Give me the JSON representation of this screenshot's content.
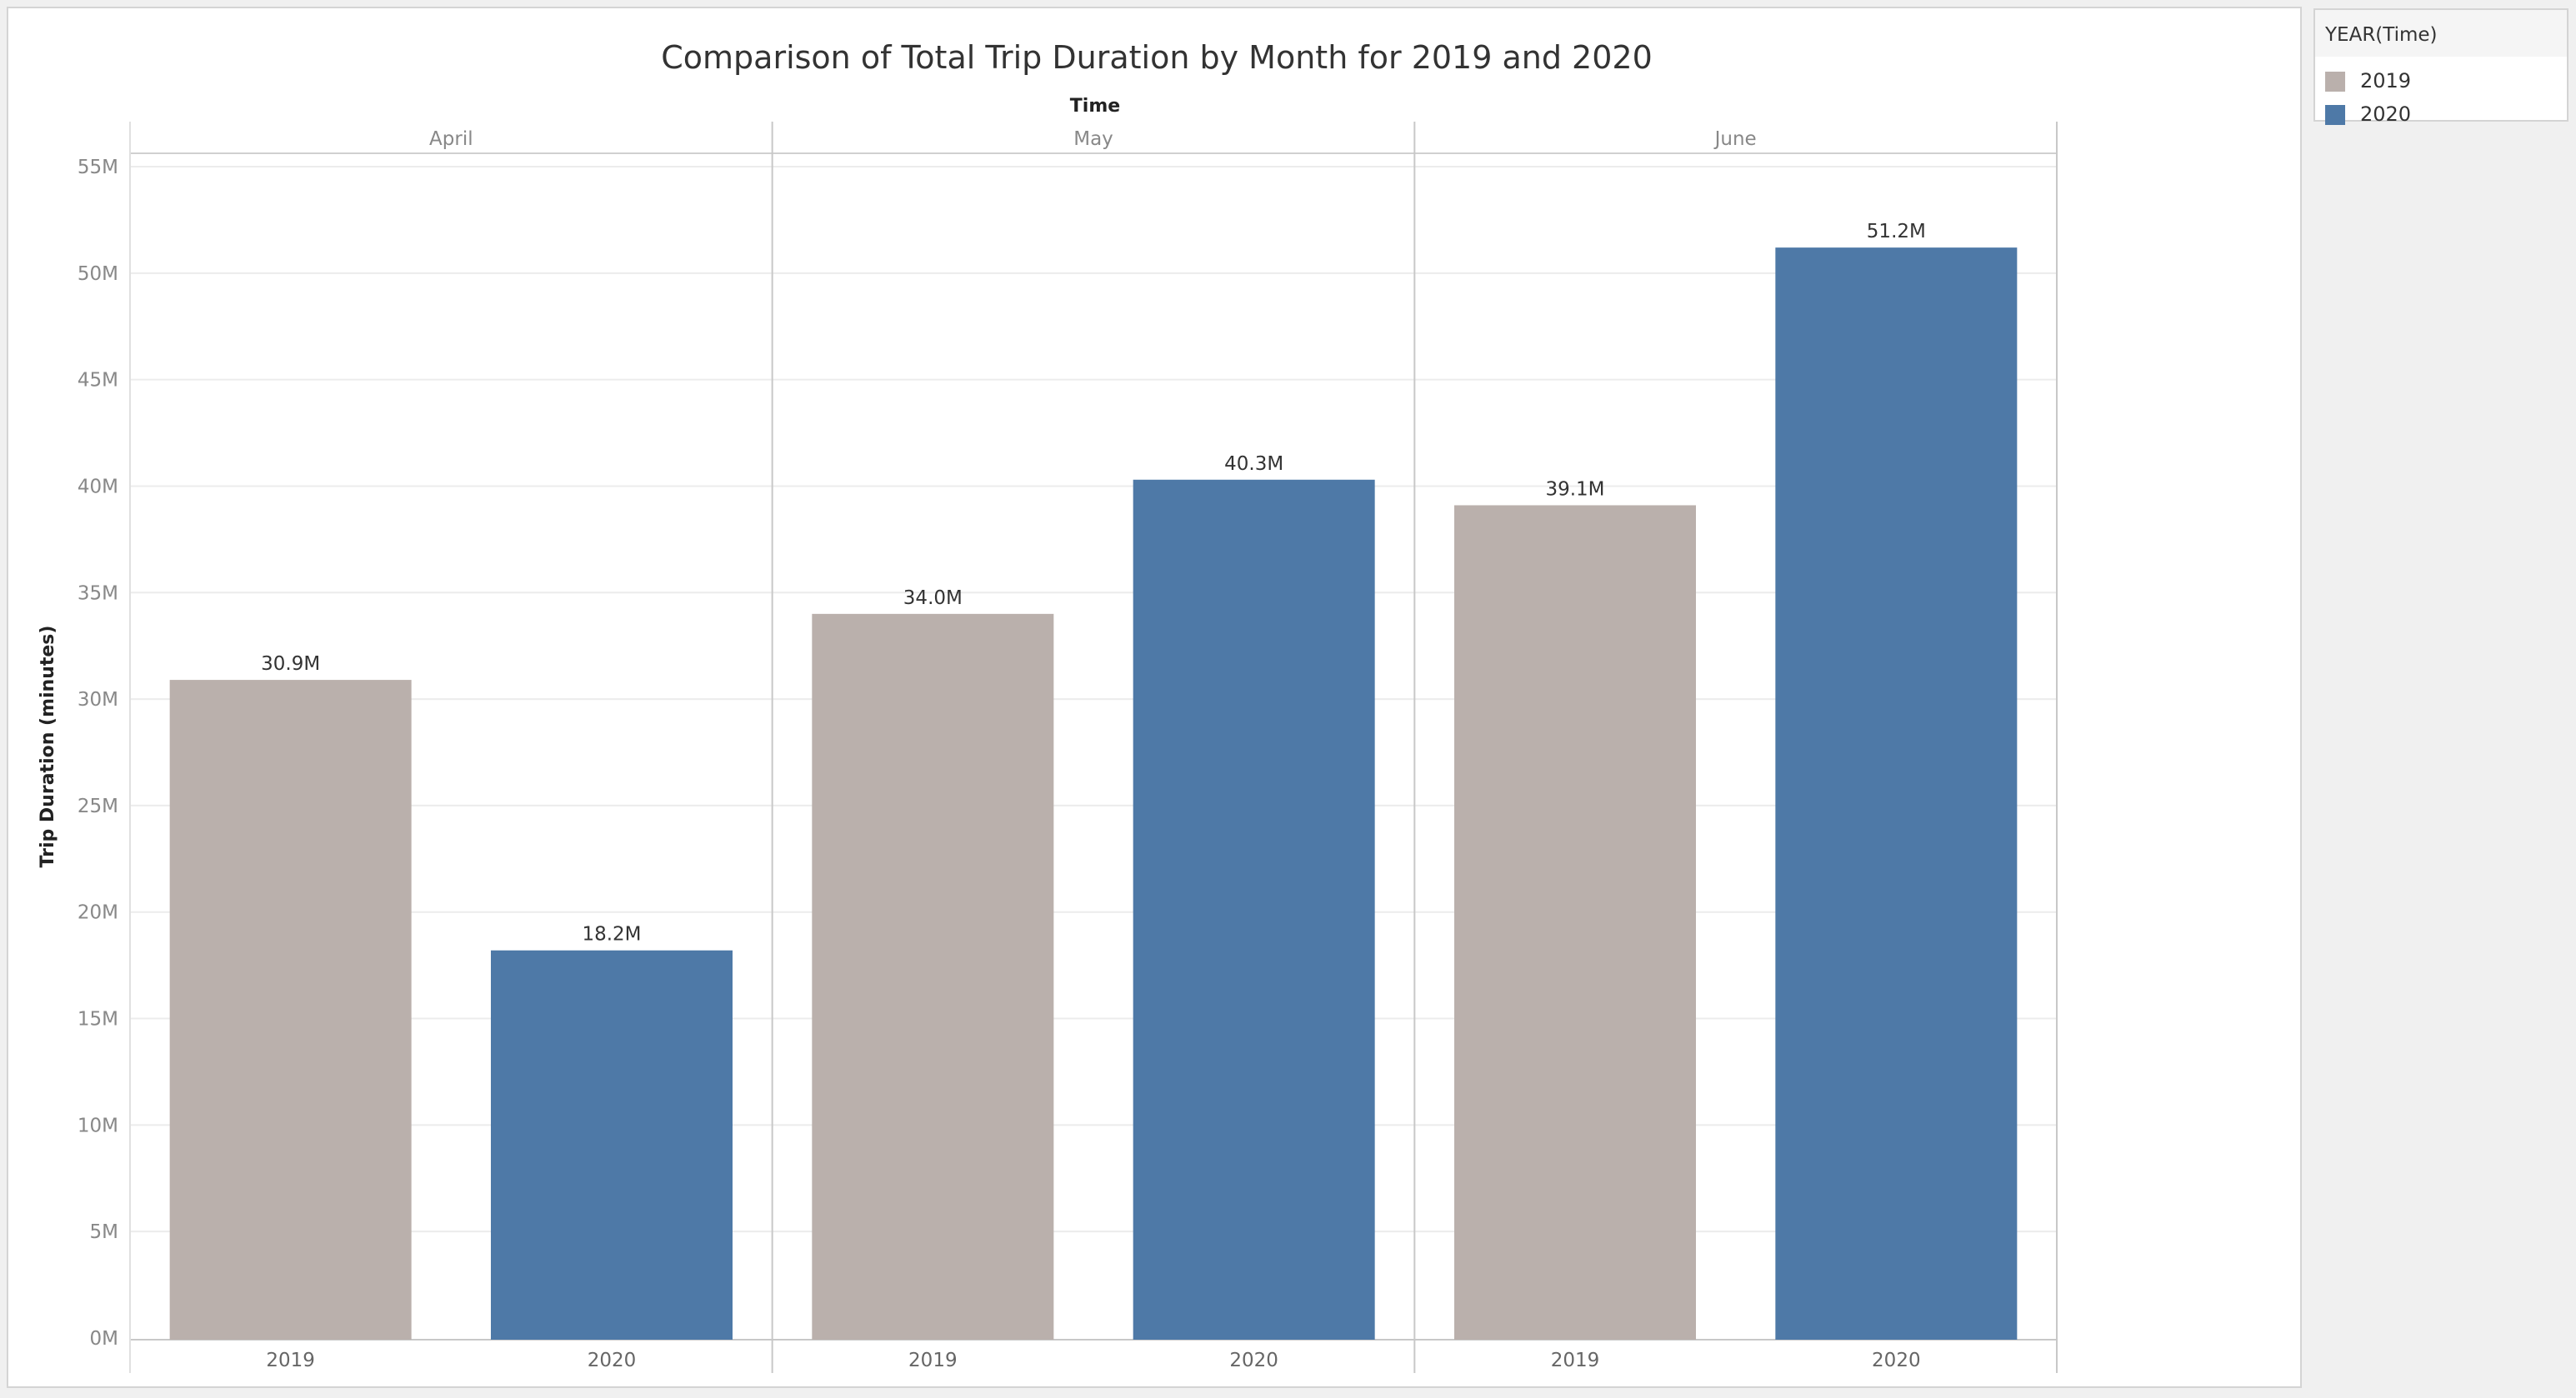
{
  "chart_data": {
    "type": "bar",
    "title": "Comparison of Total Trip Duration by Month for 2019 and 2020",
    "column_header_title": "Time",
    "ylabel": "Trip Duration (minutes)",
    "ylim": [
      0,
      55000000
    ],
    "yticks": [
      {
        "value": 0,
        "label": "0M"
      },
      {
        "value": 5000000,
        "label": "5M"
      },
      {
        "value": 10000000,
        "label": "10M"
      },
      {
        "value": 15000000,
        "label": "15M"
      },
      {
        "value": 20000000,
        "label": "20M"
      },
      {
        "value": 25000000,
        "label": "25M"
      },
      {
        "value": 30000000,
        "label": "30M"
      },
      {
        "value": 35000000,
        "label": "35M"
      },
      {
        "value": 40000000,
        "label": "40M"
      },
      {
        "value": 45000000,
        "label": "45M"
      },
      {
        "value": 50000000,
        "label": "50M"
      },
      {
        "value": 55000000,
        "label": "55M"
      }
    ],
    "grid": true,
    "legend_placement": "top-right",
    "groups": [
      {
        "name": "April",
        "bars": [
          {
            "category": "2019",
            "value": 30900000,
            "label": "30.9M",
            "color": "#bab0ac"
          },
          {
            "category": "2020",
            "value": 18200000,
            "label": "18.2M",
            "color": "#4e79a7"
          }
        ]
      },
      {
        "name": "May",
        "bars": [
          {
            "category": "2019",
            "value": 34000000,
            "label": "34.0M",
            "color": "#bab0ac"
          },
          {
            "category": "2020",
            "value": 40300000,
            "label": "40.3M",
            "color": "#4e79a7"
          }
        ]
      },
      {
        "name": "June",
        "bars": [
          {
            "category": "2019",
            "value": 39100000,
            "label": "39.1M",
            "color": "#bab0ac"
          },
          {
            "category": "2020",
            "value": 51200000,
            "label": "51.2M",
            "color": "#4e79a7"
          }
        ]
      }
    ]
  },
  "legend": {
    "title": "YEAR(Time)",
    "items": [
      {
        "label": "2019",
        "color": "#bab0ac"
      },
      {
        "label": "2020",
        "color": "#4e79a7"
      }
    ]
  }
}
